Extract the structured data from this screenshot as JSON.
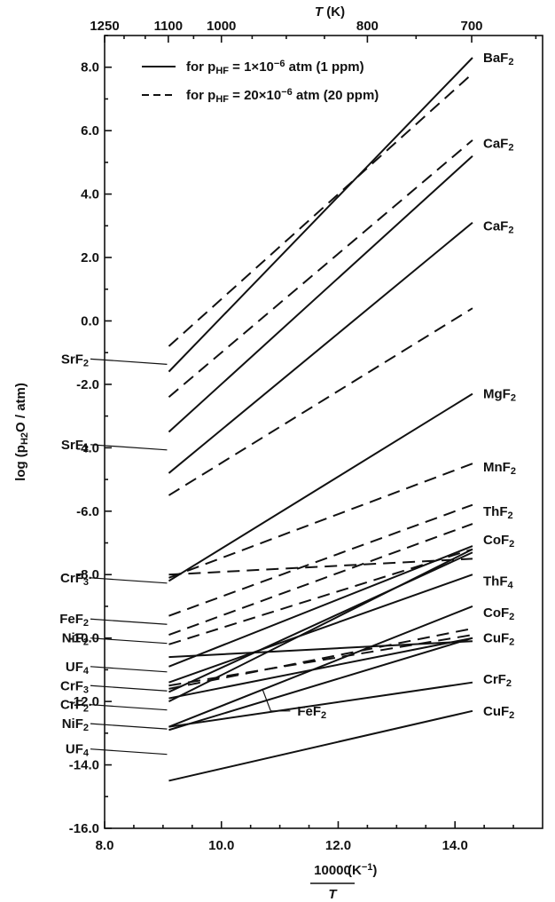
{
  "chart_data": {
    "type": "line",
    "xlabel_num": "10000",
    "xlabel_unit": "(K",
    "xlabel_unit_exp": "−1",
    "xlabel_unit_close": ")",
    "xlabel_den": "T",
    "ylabel": "log (p",
    "ylabel_sub": "H",
    "ylabel_sub2": "2",
    "ylabel_rest": "O / atm)",
    "top_axis_label": "T",
    "top_axis_unit": "(K)",
    "xlim": [
      8.0,
      15.5
    ],
    "ylim": [
      -16.0,
      9.0
    ],
    "x_ticks": [
      "8.0",
      "10.0",
      "12.0",
      "14.0"
    ],
    "y_ticks": [
      "8.0",
      "6.0",
      "4.0",
      "2.0",
      "0.0",
      "-2.0",
      "-4.0",
      "-6.0",
      "-8.0",
      "-10.0",
      "-12.0",
      "-14.0",
      "-16.0"
    ],
    "top_ticks": [
      {
        "label": "1250",
        "T": 1250
      },
      {
        "label": "1100",
        "T": 1100
      },
      {
        "label": "1000",
        "T": 1000
      },
      {
        "label": "800",
        "T": 800
      },
      {
        "label": "700",
        "T": 700
      }
    ],
    "legend": [
      {
        "style": "solid",
        "text": "for  p",
        "sub": "HF",
        "rest": " = 1×10",
        "sup": "−6",
        "tail": " atm (1 ppm)"
      },
      {
        "style": "dashed",
        "text": "for  p",
        "sub": "HF",
        "rest": " = 20×10",
        "sup": "−6",
        "tail": " atm (20 ppm)"
      }
    ],
    "series": [
      {
        "style": "solid",
        "x": [
          9.1,
          14.3
        ],
        "y": [
          -1.6,
          8.3
        ]
      },
      {
        "style": "dashed",
        "x": [
          9.1,
          14.3
        ],
        "y": [
          -0.8,
          7.8
        ]
      },
      {
        "style": "solid",
        "x": [
          9.1,
          14.3
        ],
        "y": [
          -3.5,
          5.2
        ]
      },
      {
        "style": "dashed",
        "x": [
          9.1,
          14.3
        ],
        "y": [
          -2.4,
          5.7
        ]
      },
      {
        "style": "solid",
        "x": [
          9.1,
          14.3
        ],
        "y": [
          -4.8,
          3.1
        ]
      },
      {
        "style": "dashed",
        "x": [
          9.1,
          14.3
        ],
        "y": [
          -5.5,
          0.4
        ]
      },
      {
        "style": "solid",
        "x": [
          9.1,
          14.3
        ],
        "y": [
          -8.2,
          -2.3
        ]
      },
      {
        "style": "dashed",
        "x": [
          9.1,
          14.3
        ],
        "y": [
          -8.1,
          -4.5
        ]
      },
      {
        "style": "dashed",
        "x": [
          9.1,
          14.3
        ],
        "y": [
          -9.3,
          -5.8
        ]
      },
      {
        "style": "dashed",
        "x": [
          9.1,
          14.3
        ],
        "y": [
          -9.9,
          -6.4
        ]
      },
      {
        "style": "dashed",
        "x": [
          9.1,
          14.3
        ],
        "y": [
          -8.0,
          -7.5
        ]
      },
      {
        "style": "dashed",
        "x": [
          9.1,
          14.3
        ],
        "y": [
          -10.2,
          -7.2
        ]
      },
      {
        "style": "solid",
        "x": [
          9.1,
          14.3
        ],
        "y": [
          -10.9,
          -7.1
        ]
      },
      {
        "style": "solid",
        "x": [
          9.1,
          14.3
        ],
        "y": [
          -11.7,
          -7.3
        ]
      },
      {
        "style": "solid",
        "x": [
          9.1,
          14.3
        ],
        "y": [
          -12.0,
          -7.2
        ]
      },
      {
        "style": "solid",
        "x": [
          9.1,
          14.3
        ],
        "y": [
          -11.4,
          -8.0
        ]
      },
      {
        "style": "solid",
        "x": [
          9.1,
          14.3
        ],
        "y": [
          -12.8,
          -9.0
        ]
      },
      {
        "style": "solid",
        "x": [
          9.1,
          14.3
        ],
        "y": [
          -10.6,
          -10.1
        ]
      },
      {
        "style": "dashed",
        "x": [
          9.1,
          14.3
        ],
        "y": [
          -11.6,
          -9.7
        ]
      },
      {
        "style": "dashed",
        "x": [
          9.1,
          14.3
        ],
        "y": [
          -11.5,
          -9.9
        ]
      },
      {
        "style": "solid",
        "x": [
          9.1,
          14.3
        ],
        "y": [
          -11.9,
          -10.0
        ]
      },
      {
        "style": "solid",
        "x": [
          9.1,
          14.3
        ],
        "y": [
          -12.9,
          -10.0
        ]
      },
      {
        "style": "solid",
        "x": [
          9.1,
          14.3
        ],
        "y": [
          -12.8,
          -11.4
        ]
      },
      {
        "style": "solid",
        "x": [
          9.1,
          14.3
        ],
        "y": [
          -14.5,
          -12.3
        ]
      }
    ],
    "labels_left": [
      {
        "base": "SrF",
        "sub": "2",
        "y": -1.2
      },
      {
        "base": "SrF",
        "sub": "2",
        "y": -3.9
      },
      {
        "base": "CrF",
        "sub": "3",
        "y": -8.1
      },
      {
        "base": "FeF",
        "sub": "2",
        "y": -9.4
      },
      {
        "base": "NiF",
        "sub": "2",
        "y": -10.0
      },
      {
        "base": "UF",
        "sub": "4",
        "y": -10.9
      },
      {
        "base": "CrF",
        "sub": "3",
        "y": -11.5
      },
      {
        "base": "CrF",
        "sub": "2",
        "y": -12.1
      },
      {
        "base": "NiF",
        "sub": "2",
        "y": -12.7
      },
      {
        "base": "UF",
        "sub": "4",
        "y": -13.5
      }
    ],
    "labels_right": [
      {
        "base": "BaF",
        "sub": "2",
        "y": 8.3
      },
      {
        "base": "CaF",
        "sub": "2",
        "y": 5.6
      },
      {
        "base": "CaF",
        "sub": "2",
        "y": 3.0
      },
      {
        "base": "MgF",
        "sub": "2",
        "y": -2.3
      },
      {
        "base": "MnF",
        "sub": "2",
        "y": -4.6
      },
      {
        "base": "ThF",
        "sub": "2",
        "y": -6.0
      },
      {
        "base": "CoF",
        "sub": "2",
        "y": -6.9
      },
      {
        "base": "ThF",
        "sub": "4",
        "y": -8.2
      },
      {
        "base": "CoF",
        "sub": "2",
        "y": -9.2
      },
      {
        "base": "CuF",
        "sub": "2",
        "y": -10.0
      },
      {
        "base": "CrF",
        "sub": "2",
        "y": -11.3
      },
      {
        "base": "CuF",
        "sub": "2",
        "y": -12.3
      }
    ],
    "annotation": {
      "base": "FeF",
      "sub": "2",
      "x": 11.3,
      "y": -11.75,
      "pointer_x": 10.7,
      "pointer_y": -11.6
    }
  }
}
